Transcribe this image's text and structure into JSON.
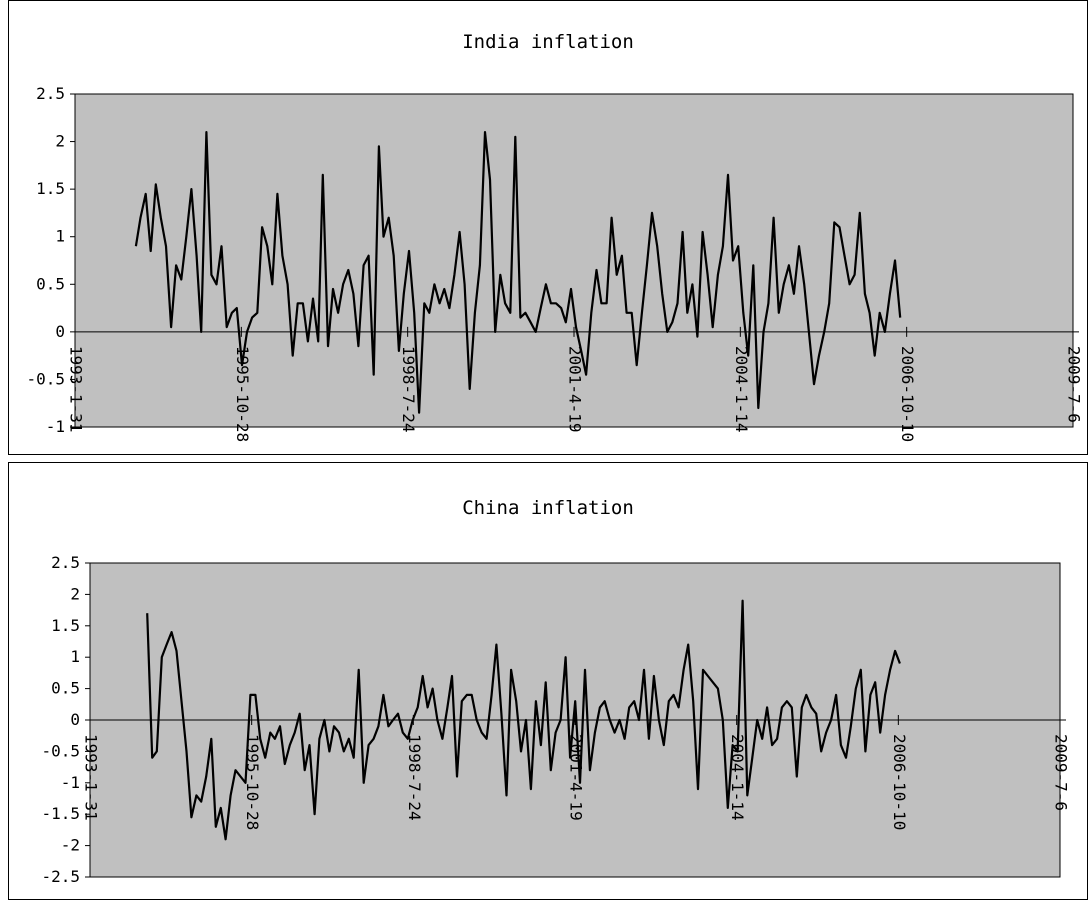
{
  "colors": {
    "plot_background": "#c0c0c0",
    "line": "#000000",
    "axis": "#000000"
  },
  "chart_data": [
    {
      "type": "line",
      "title": "India inflation",
      "ylim": [
        -1,
        2.5
      ],
      "y_ticks": [
        "2.5",
        "2",
        "1.5",
        "1",
        "0.5",
        "0",
        "-0.5",
        "-1"
      ],
      "x_tick_labels": [
        "1993-1-31",
        "1995-10-28",
        "1998-7-24",
        "2001-4-19",
        "2004-1-14",
        "2006-10-10",
        "2009-7-6"
      ],
      "x_range": [
        "1993-1-31",
        "2009-7-6"
      ],
      "grid": false,
      "legend": "none",
      "series": [
        {
          "x_start": "1994-02-01",
          "x_step_months": 1,
          "values": [
            0.9,
            1.2,
            1.45,
            0.85,
            1.55,
            1.2,
            0.9,
            0.05,
            0.7,
            0.55,
            1.0,
            1.5,
            0.8,
            0.0,
            2.1,
            0.6,
            0.5,
            0.9,
            0.05,
            0.2,
            0.25,
            -0.35,
            0.0,
            0.15,
            0.2,
            1.1,
            0.9,
            0.5,
            1.45,
            0.8,
            0.5,
            -0.25,
            0.3,
            0.3,
            -0.1,
            0.35,
            -0.1,
            1.65,
            -0.15,
            0.45,
            0.2,
            0.5,
            0.65,
            0.4,
            -0.15,
            0.7,
            0.8,
            -0.45,
            1.95,
            1.0,
            1.2,
            0.8,
            -0.2,
            0.4,
            0.85,
            0.2,
            -0.85,
            0.3,
            0.2,
            0.5,
            0.3,
            0.45,
            0.25,
            0.6,
            1.05,
            0.5,
            -0.6,
            0.2,
            0.7,
            2.1,
            1.6,
            0.0,
            0.6,
            0.3,
            0.2,
            2.05,
            0.15,
            0.2,
            0.1,
            0.0,
            0.25,
            0.5,
            0.3,
            0.3,
            0.25,
            0.1,
            0.45,
            0.05,
            -0.2,
            -0.45,
            0.2,
            0.65,
            0.3,
            0.3,
            1.2,
            0.6,
            0.8,
            0.2,
            0.2,
            -0.35,
            0.2,
            0.7,
            1.25,
            0.9,
            0.4,
            0.0,
            0.1,
            0.3,
            1.05,
            0.2,
            0.5,
            -0.05,
            1.05,
            0.6,
            0.05,
            0.6,
            0.9,
            1.65,
            0.75,
            0.9,
            0.2,
            -0.25,
            0.7,
            -0.8,
            0.0,
            0.3,
            1.2,
            0.2,
            0.5,
            0.7,
            0.4,
            0.9,
            0.5,
            0.0,
            -0.55,
            -0.25,
            0.0,
            0.3,
            1.15,
            1.1,
            0.8,
            0.5,
            0.6,
            1.25,
            0.4,
            0.2,
            -0.25,
            0.2,
            0.0,
            0.4,
            0.75,
            0.15
          ]
        }
      ]
    },
    {
      "type": "line",
      "title": "China inflation",
      "ylim": [
        -2.5,
        2.5
      ],
      "y_ticks": [
        "2.5",
        "2",
        "1.5",
        "1",
        "0.5",
        "0",
        "-0.5",
        "-1",
        "-1.5",
        "-2",
        "-2.5"
      ],
      "x_tick_labels": [
        "1993-1-31",
        "1995-10-28",
        "1998-7-24",
        "2001-4-19",
        "2004-1-14",
        "2006-10-10",
        "2009-7-6"
      ],
      "x_range": [
        "1993-1-31",
        "2009-7-6"
      ],
      "grid": false,
      "legend": "none",
      "series": [
        {
          "x_start": "1994-01-20",
          "x_step_months": 1,
          "values": [
            1.7,
            -0.6,
            -0.5,
            1.0,
            1.2,
            1.4,
            1.1,
            0.3,
            -0.5,
            -1.55,
            -1.2,
            -1.3,
            -0.9,
            -0.3,
            -1.7,
            -1.4,
            -1.9,
            -1.2,
            -0.8,
            -0.9,
            -1.0,
            0.4,
            0.4,
            -0.3,
            -0.6,
            -0.2,
            -0.3,
            -0.1,
            -0.7,
            -0.4,
            -0.2,
            0.1,
            -0.8,
            -0.4,
            -1.5,
            -0.3,
            0.0,
            -0.5,
            -0.1,
            -0.2,
            -0.5,
            -0.3,
            -0.6,
            0.8,
            -1.0,
            -0.4,
            -0.3,
            -0.1,
            0.4,
            -0.1,
            0.0,
            0.1,
            -0.2,
            -0.3,
            0.0,
            0.2,
            0.7,
            0.2,
            0.5,
            0.0,
            -0.3,
            0.2,
            0.7,
            -0.9,
            0.3,
            0.4,
            0.4,
            0.0,
            -0.2,
            -0.3,
            0.4,
            1.2,
            0.1,
            -1.2,
            0.8,
            0.3,
            -0.5,
            0.0,
            -1.1,
            0.3,
            -0.4,
            0.6,
            -0.8,
            -0.2,
            0.0,
            1.0,
            -0.6,
            0.3,
            -1.0,
            0.8,
            -0.8,
            -0.2,
            0.2,
            0.3,
            0.0,
            -0.2,
            0.0,
            -0.3,
            0.2,
            0.3,
            0.0,
            0.8,
            -0.3,
            0.7,
            0.0,
            -0.4,
            0.3,
            0.4,
            0.2,
            0.8,
            1.2,
            0.3,
            -1.1,
            0.8,
            0.7,
            0.6,
            0.5,
            0.0,
            -1.4,
            -0.4,
            -0.5,
            1.9,
            -1.2,
            -0.6,
            0.0,
            -0.3,
            0.2,
            -0.4,
            -0.3,
            0.2,
            0.3,
            0.2,
            -0.9,
            0.2,
            0.4,
            0.2,
            0.1,
            -0.5,
            -0.2,
            0.0,
            0.4,
            -0.4,
            -0.6,
            -0.1,
            0.5,
            0.8,
            -0.5,
            0.4,
            0.6,
            -0.2,
            0.4,
            0.8,
            1.1,
            0.9
          ]
        }
      ]
    }
  ]
}
